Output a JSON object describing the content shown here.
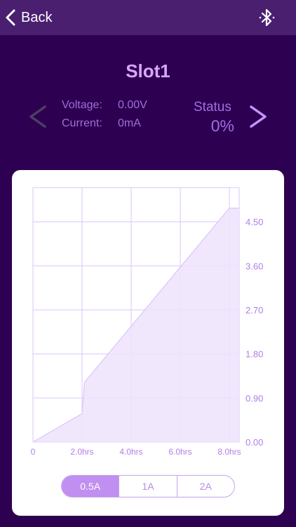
{
  "nav": {
    "back_label": "Back",
    "bluetooth_icon": "bluetooth-icon"
  },
  "slot": {
    "title": "Slot1",
    "voltage_label": "Voltage:",
    "voltage_value": "0.00V",
    "current_label": "Current:",
    "current_value": "0mA",
    "status_label": "Status",
    "status_value": "0%",
    "prev_icon": "chevron-left-icon",
    "next_icon": "chevron-right-icon"
  },
  "chart_data": {
    "type": "area",
    "x": [
      0,
      2.0,
      2.1,
      8.0,
      8.4
    ],
    "y": [
      0,
      0.58,
      1.22,
      4.78,
      4.78
    ],
    "x_ticks": [
      "0",
      "2.0hrs",
      "4.0hrs",
      "6.0hrs",
      "8.0hrs"
    ],
    "x_tick_values": [
      0,
      2,
      4,
      6,
      8
    ],
    "y_ticks": [
      "0.00",
      "0.90",
      "1.80",
      "2.70",
      "3.60",
      "4.50"
    ],
    "y_tick_values": [
      0,
      0.9,
      1.8,
      2.7,
      3.6,
      4.5
    ],
    "xlim": [
      0,
      8.4
    ],
    "ylim": [
      0,
      5.2
    ],
    "grid": true,
    "colors": {
      "fill": "#efe3fd",
      "line": "#dcc3fa",
      "grid": "#ddc6fb",
      "label": "#b07ee8"
    }
  },
  "current_selector": {
    "options": [
      "0.5A",
      "1A",
      "2A"
    ],
    "selected": "0.5A"
  },
  "colors": {
    "background": "#2e0052",
    "navbar": "#4a1f70",
    "accent": "#c08ff0"
  }
}
